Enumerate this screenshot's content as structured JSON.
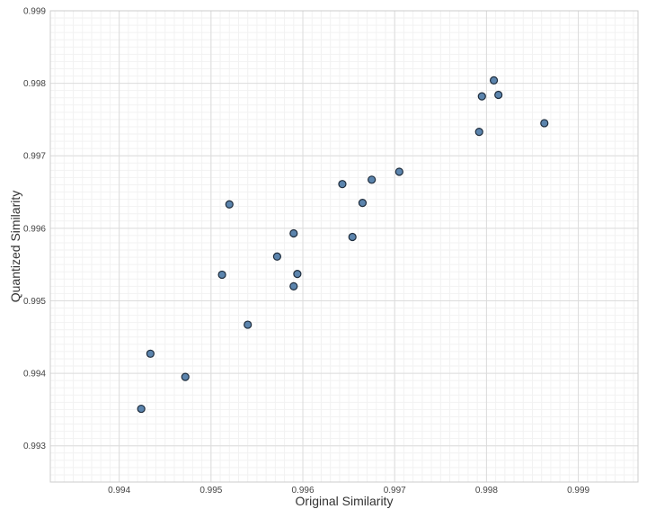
{
  "chart_data": {
    "type": "scatter",
    "title": "",
    "xlabel": "Original Similarity",
    "ylabel": "Quantized Similarity",
    "xlim": [
      0.99325,
      0.99965
    ],
    "ylim": [
      0.9925,
      0.999
    ],
    "x_ticks": [
      "0.994",
      "0.995",
      "0.996",
      "0.997",
      "0.998",
      "0.999"
    ],
    "y_ticks": [
      "0.993",
      "0.994",
      "0.995",
      "0.996",
      "0.997",
      "0.998",
      "0.999"
    ],
    "grid": true,
    "legend": "none",
    "point_color": "#5b84ad",
    "point_edge_color": "#1f2d3d",
    "points": [
      {
        "x": 0.99424,
        "y": 0.99351
      },
      {
        "x": 0.99434,
        "y": 0.99427
      },
      {
        "x": 0.99472,
        "y": 0.99395
      },
      {
        "x": 0.99512,
        "y": 0.99536
      },
      {
        "x": 0.9952,
        "y": 0.99633
      },
      {
        "x": 0.9954,
        "y": 0.99467
      },
      {
        "x": 0.99572,
        "y": 0.99561
      },
      {
        "x": 0.9959,
        "y": 0.99593
      },
      {
        "x": 0.9959,
        "y": 0.9952
      },
      {
        "x": 0.99594,
        "y": 0.99537
      },
      {
        "x": 0.99643,
        "y": 0.99661
      },
      {
        "x": 0.99654,
        "y": 0.99588
      },
      {
        "x": 0.99665,
        "y": 0.99635
      },
      {
        "x": 0.99675,
        "y": 0.99667
      },
      {
        "x": 0.99705,
        "y": 0.99678
      },
      {
        "x": 0.99792,
        "y": 0.99733
      },
      {
        "x": 0.99795,
        "y": 0.99782
      },
      {
        "x": 0.99808,
        "y": 0.99804
      },
      {
        "x": 0.99813,
        "y": 0.99784
      },
      {
        "x": 0.99863,
        "y": 0.99745
      }
    ]
  }
}
